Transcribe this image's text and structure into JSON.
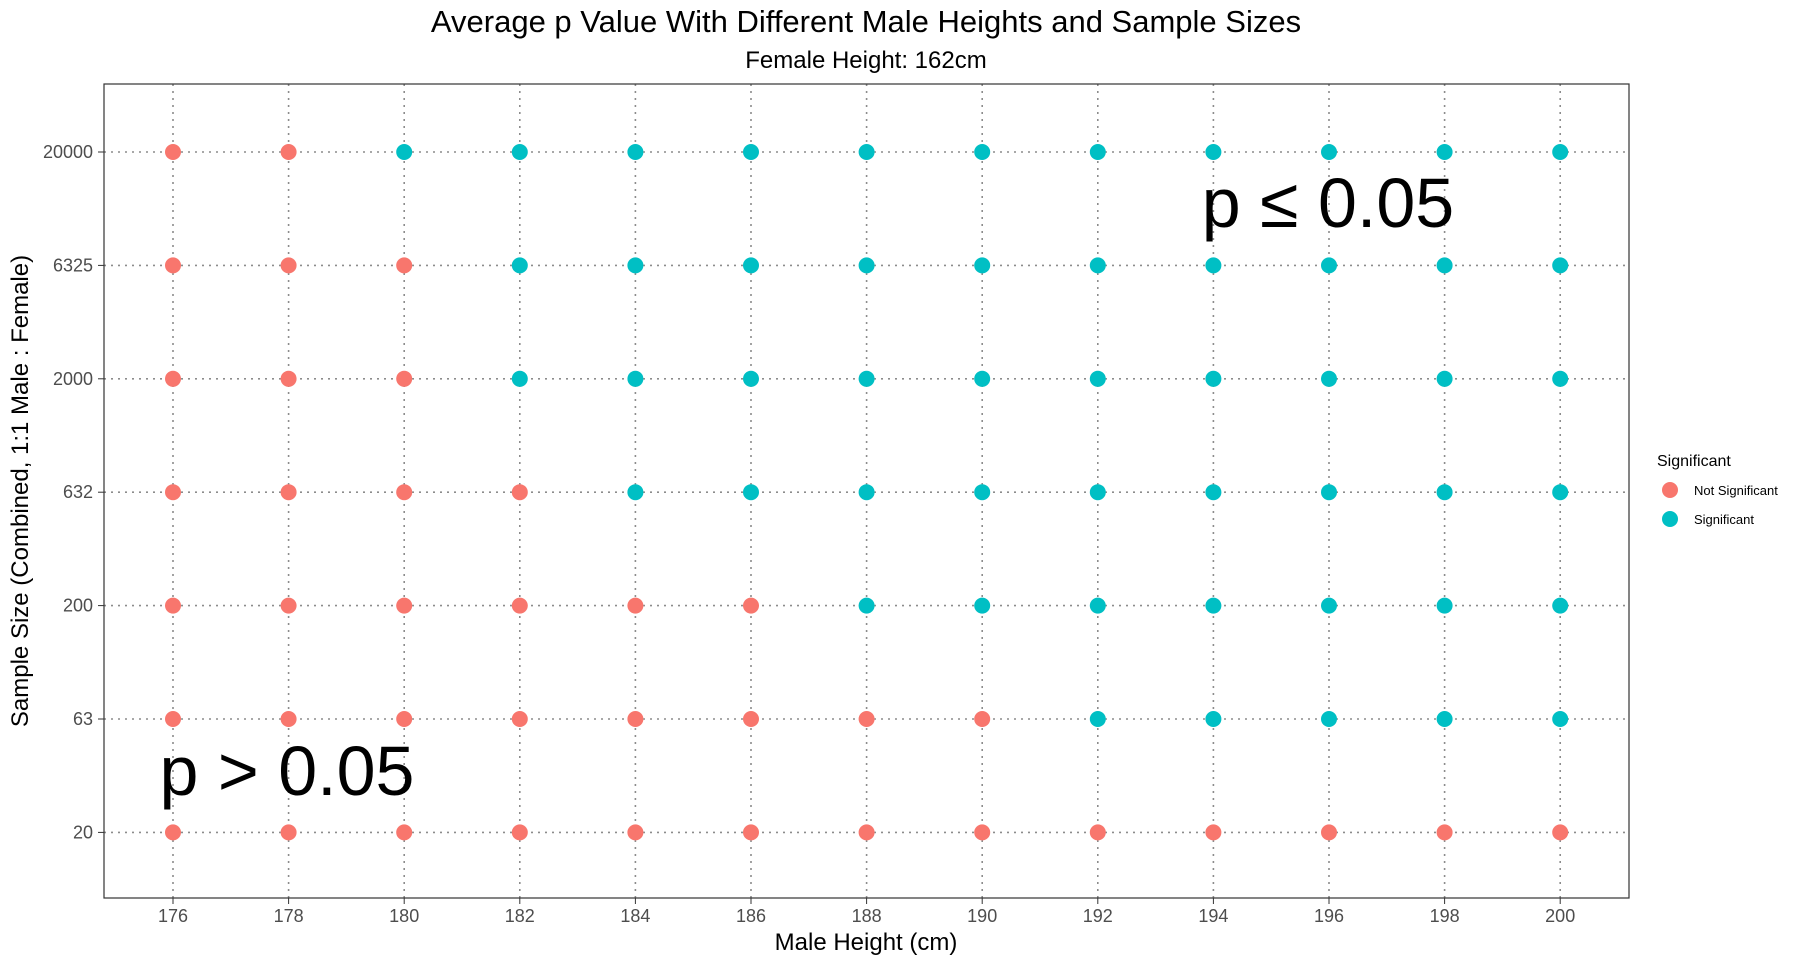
{
  "chart_data": {
    "type": "scatter",
    "title": "Average p Value With Different Male Heights and Sample Sizes",
    "subtitle": "Female Height: 162cm",
    "xlabel": "Male Height (cm)",
    "ylabel": "Sample Size (Combined, 1:1 Male : Female)",
    "x_ticks": [
      "176",
      "178",
      "180",
      "182",
      "184",
      "186",
      "188",
      "190",
      "192",
      "194",
      "196",
      "198",
      "200"
    ],
    "y_ticks": [
      "20",
      "63",
      "200",
      "632",
      "2000",
      "6325",
      "20000"
    ],
    "y_scale": "log",
    "grid": "dotted",
    "legend": {
      "title": "Significant",
      "placement": "right",
      "entries": [
        {
          "label": "Not Significant",
          "color": "#F8766D"
        },
        {
          "label": "Significant",
          "color": "#00BFC4"
        }
      ]
    },
    "series": [
      {
        "name": "Not Significant",
        "color": "#F8766D",
        "points": [
          [
            176,
            20000
          ],
          [
            178,
            20000
          ],
          [
            176,
            6325
          ],
          [
            178,
            6325
          ],
          [
            180,
            6325
          ],
          [
            176,
            2000
          ],
          [
            178,
            2000
          ],
          [
            180,
            2000
          ],
          [
            176,
            632
          ],
          [
            178,
            632
          ],
          [
            180,
            632
          ],
          [
            182,
            632
          ],
          [
            176,
            200
          ],
          [
            178,
            200
          ],
          [
            180,
            200
          ],
          [
            182,
            200
          ],
          [
            184,
            200
          ],
          [
            186,
            200
          ],
          [
            176,
            63
          ],
          [
            178,
            63
          ],
          [
            180,
            63
          ],
          [
            182,
            63
          ],
          [
            184,
            63
          ],
          [
            186,
            63
          ],
          [
            188,
            63
          ],
          [
            190,
            63
          ],
          [
            176,
            20
          ],
          [
            178,
            20
          ],
          [
            180,
            20
          ],
          [
            182,
            20
          ],
          [
            184,
            20
          ],
          [
            186,
            20
          ],
          [
            188,
            20
          ],
          [
            190,
            20
          ],
          [
            192,
            20
          ],
          [
            194,
            20
          ],
          [
            196,
            20
          ],
          [
            198,
            20
          ],
          [
            200,
            20
          ]
        ]
      },
      {
        "name": "Significant",
        "color": "#00BFC4",
        "points": [
          [
            180,
            20000
          ],
          [
            182,
            20000
          ],
          [
            184,
            20000
          ],
          [
            186,
            20000
          ],
          [
            188,
            20000
          ],
          [
            190,
            20000
          ],
          [
            192,
            20000
          ],
          [
            194,
            20000
          ],
          [
            196,
            20000
          ],
          [
            198,
            20000
          ],
          [
            200,
            20000
          ],
          [
            182,
            6325
          ],
          [
            184,
            6325
          ],
          [
            186,
            6325
          ],
          [
            188,
            6325
          ],
          [
            190,
            6325
          ],
          [
            192,
            6325
          ],
          [
            194,
            6325
          ],
          [
            196,
            6325
          ],
          [
            198,
            6325
          ],
          [
            200,
            6325
          ],
          [
            182,
            2000
          ],
          [
            184,
            2000
          ],
          [
            186,
            2000
          ],
          [
            188,
            2000
          ],
          [
            190,
            2000
          ],
          [
            192,
            2000
          ],
          [
            194,
            2000
          ],
          [
            196,
            2000
          ],
          [
            198,
            2000
          ],
          [
            200,
            2000
          ],
          [
            184,
            632
          ],
          [
            186,
            632
          ],
          [
            188,
            632
          ],
          [
            190,
            632
          ],
          [
            192,
            632
          ],
          [
            194,
            632
          ],
          [
            196,
            632
          ],
          [
            198,
            632
          ],
          [
            200,
            632
          ],
          [
            188,
            200
          ],
          [
            190,
            200
          ],
          [
            192,
            200
          ],
          [
            194,
            200
          ],
          [
            196,
            200
          ],
          [
            198,
            200
          ],
          [
            200,
            200
          ],
          [
            192,
            63
          ],
          [
            194,
            63
          ],
          [
            196,
            63
          ],
          [
            198,
            63
          ],
          [
            200,
            63
          ]
        ]
      }
    ],
    "annotations": [
      {
        "text": "p ≤ 0.05",
        "x": 196,
        "y_between": [
          "20000",
          "6325"
        ]
      },
      {
        "text": "p > 0.05",
        "x": 178,
        "y_between": [
          "63",
          "20"
        ]
      }
    ]
  }
}
